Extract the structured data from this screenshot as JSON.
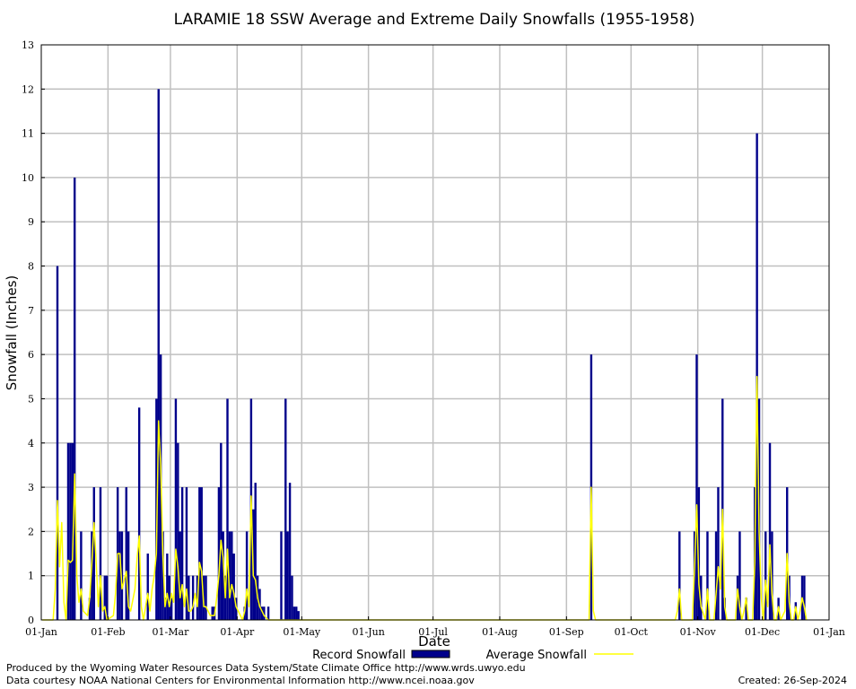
{
  "chart_data": {
    "type": "bar",
    "title": "LARAMIE 18 SSW Average and Extreme Daily Snowfalls (1955-1958)",
    "xlabel": "Date",
    "ylabel": "Snowfall (Inches)",
    "ylim": [
      0,
      13
    ],
    "yticks": [
      "0",
      "1",
      "2",
      "3",
      "4",
      "5",
      "6",
      "7",
      "8",
      "9",
      "10",
      "11",
      "12",
      "13"
    ],
    "xlim_days": [
      0,
      366
    ],
    "xticks": [
      {
        "label": "01-Jan",
        "day": 0
      },
      {
        "label": "01-Feb",
        "day": 31
      },
      {
        "label": "01-Mar",
        "day": 60
      },
      {
        "label": "01-Apr",
        "day": 91
      },
      {
        "label": "01-May",
        "day": 121
      },
      {
        "label": "01-Jun",
        "day": 152
      },
      {
        "label": "01-Jul",
        "day": 182
      },
      {
        "label": "01-Aug",
        "day": 213
      },
      {
        "label": "01-Sep",
        "day": 244
      },
      {
        "label": "01-Oct",
        "day": 274
      },
      {
        "label": "01-Nov",
        "day": 305
      },
      {
        "label": "01-Dec",
        "day": 335
      },
      {
        "label": "01-Jan",
        "day": 366
      }
    ],
    "grid": true,
    "legend_position": "bottom",
    "series": [
      {
        "name": "Record Snowfall",
        "style": "bar",
        "color": "#00008b",
        "points": [
          [
            7,
            8
          ],
          [
            12,
            4
          ],
          [
            13,
            4
          ],
          [
            14,
            4
          ],
          [
            15,
            10
          ],
          [
            16,
            0
          ],
          [
            18,
            2
          ],
          [
            22,
            0.5
          ],
          [
            23,
            2
          ],
          [
            24,
            3
          ],
          [
            27,
            3
          ],
          [
            29,
            1
          ],
          [
            30,
            1
          ],
          [
            35,
            3
          ],
          [
            36,
            2
          ],
          [
            37,
            2
          ],
          [
            39,
            3
          ],
          [
            40,
            2
          ],
          [
            45,
            4.8
          ],
          [
            49,
            1.5
          ],
          [
            53,
            5
          ],
          [
            54,
            12
          ],
          [
            55,
            6
          ],
          [
            56,
            2
          ],
          [
            57,
            0.5
          ],
          [
            58,
            1.5
          ],
          [
            59,
            1
          ],
          [
            60,
            0.5
          ],
          [
            62,
            5
          ],
          [
            63,
            4
          ],
          [
            64,
            2
          ],
          [
            65,
            3
          ],
          [
            67,
            3
          ],
          [
            68,
            1
          ],
          [
            70,
            1
          ],
          [
            72,
            1
          ],
          [
            73,
            3
          ],
          [
            74,
            3
          ],
          [
            75,
            1
          ],
          [
            76,
            1
          ],
          [
            79,
            0.3
          ],
          [
            80,
            0.3
          ],
          [
            82,
            3
          ],
          [
            83,
            4
          ],
          [
            84,
            2
          ],
          [
            85,
            1
          ],
          [
            86,
            5
          ],
          [
            87,
            2
          ],
          [
            88,
            2
          ],
          [
            89,
            1.5
          ],
          [
            90,
            0.5
          ],
          [
            94,
            0.3
          ],
          [
            95,
            2
          ],
          [
            97,
            5
          ],
          [
            98,
            2.5
          ],
          [
            99,
            3.1
          ],
          [
            100,
            1
          ],
          [
            101,
            0.7
          ],
          [
            102,
            0.3
          ],
          [
            103,
            0.3
          ],
          [
            105,
            0.3
          ],
          [
            111,
            2
          ],
          [
            113,
            5
          ],
          [
            114,
            2
          ],
          [
            115,
            3.1
          ],
          [
            116,
            1
          ],
          [
            117,
            0.3
          ],
          [
            118,
            0.3
          ],
          [
            119,
            0.2
          ],
          [
            255,
            6
          ],
          [
            296,
            2
          ],
          [
            303,
            2
          ],
          [
            304,
            6
          ],
          [
            305,
            3
          ],
          [
            306,
            1
          ],
          [
            309,
            2
          ],
          [
            313,
            2
          ],
          [
            314,
            3
          ],
          [
            316,
            5
          ],
          [
            317,
            0.5
          ],
          [
            323,
            1
          ],
          [
            324,
            2
          ],
          [
            327,
            0.5
          ],
          [
            331,
            3
          ],
          [
            332,
            11
          ],
          [
            333,
            5
          ],
          [
            336,
            2
          ],
          [
            338,
            4
          ],
          [
            339,
            2
          ],
          [
            342,
            0.5
          ],
          [
            346,
            3
          ],
          [
            347,
            1
          ],
          [
            350,
            0.4
          ],
          [
            353,
            1
          ],
          [
            354,
            1
          ]
        ]
      },
      {
        "name": "Average Snowfall",
        "style": "line",
        "color": "#ffff00",
        "points": [
          [
            0,
            0
          ],
          [
            5,
            0
          ],
          [
            6,
            0.7
          ],
          [
            7,
            2.7
          ],
          [
            8,
            1.2
          ],
          [
            9,
            2.2
          ],
          [
            10,
            0.4
          ],
          [
            11,
            0
          ],
          [
            12,
            1.35
          ],
          [
            13,
            1.3
          ],
          [
            14,
            1.35
          ],
          [
            15,
            3.3
          ],
          [
            16,
            1
          ],
          [
            17,
            0.4
          ],
          [
            18,
            0.7
          ],
          [
            19,
            0.2
          ],
          [
            21,
            0.1
          ],
          [
            22,
            0.5
          ],
          [
            23,
            1.3
          ],
          [
            24,
            2.2
          ],
          [
            25,
            1.3
          ],
          [
            26,
            0.3
          ],
          [
            27,
            1
          ],
          [
            28,
            0.2
          ],
          [
            29,
            0.3
          ],
          [
            30,
            0
          ],
          [
            33,
            0.1
          ],
          [
            34,
            0.6
          ],
          [
            35,
            1.5
          ],
          [
            36,
            1.5
          ],
          [
            37,
            0.7
          ],
          [
            38,
            0.9
          ],
          [
            39,
            1.1
          ],
          [
            40,
            0.3
          ],
          [
            41,
            0.2
          ],
          [
            43,
            0.7
          ],
          [
            44,
            1.4
          ],
          [
            45,
            1.9
          ],
          [
            46,
            0.3
          ],
          [
            47,
            0
          ],
          [
            49,
            0.6
          ],
          [
            50,
            0.2
          ],
          [
            51,
            0.7
          ],
          [
            52,
            1
          ],
          [
            53,
            1.5
          ],
          [
            54,
            4.5
          ],
          [
            55,
            3.5
          ],
          [
            56,
            1.5
          ],
          [
            57,
            0.3
          ],
          [
            58,
            0.6
          ],
          [
            59,
            0.3
          ],
          [
            60,
            0.6
          ],
          [
            61,
            0.4
          ],
          [
            62,
            1.6
          ],
          [
            63,
            1.2
          ],
          [
            64,
            0.5
          ],
          [
            65,
            0.8
          ],
          [
            66,
            0.3
          ],
          [
            67,
            0.7
          ],
          [
            68,
            0.2
          ],
          [
            69,
            0.2
          ],
          [
            70,
            0.3
          ],
          [
            71,
            0.6
          ],
          [
            72,
            0.3
          ],
          [
            73,
            1.3
          ],
          [
            74,
            1.1
          ],
          [
            75,
            0.3
          ],
          [
            76,
            0.3
          ],
          [
            78,
            0.1
          ],
          [
            80,
            0.1
          ],
          [
            81,
            0.5
          ],
          [
            82,
            1
          ],
          [
            83,
            1.8
          ],
          [
            84,
            1.4
          ],
          [
            85,
            0.5
          ],
          [
            86,
            1.6
          ],
          [
            87,
            0.5
          ],
          [
            88,
            0.8
          ],
          [
            89,
            0.6
          ],
          [
            90,
            0.3
          ],
          [
            93,
            0
          ],
          [
            94,
            0.2
          ],
          [
            95,
            0.7
          ],
          [
            96,
            0.3
          ],
          [
            97,
            2.8
          ],
          [
            98,
            1
          ],
          [
            99,
            0.9
          ],
          [
            100,
            0.5
          ],
          [
            101,
            0.3
          ],
          [
            102,
            0.2
          ],
          [
            103,
            0.1
          ],
          [
            105,
            0
          ],
          [
            240,
            0
          ],
          [
            254,
            0
          ],
          [
            255,
            3
          ],
          [
            256,
            0.2
          ],
          [
            257,
            0
          ],
          [
            294,
            0
          ],
          [
            295,
            0.2
          ],
          [
            296,
            0.7
          ],
          [
            297,
            0
          ],
          [
            302,
            0
          ],
          [
            303,
            1.2
          ],
          [
            304,
            2.6
          ],
          [
            305,
            0.8
          ],
          [
            306,
            0.3
          ],
          [
            308,
            0
          ],
          [
            309,
            0.7
          ],
          [
            310,
            0
          ],
          [
            312,
            0
          ],
          [
            313,
            0.6
          ],
          [
            314,
            1.2
          ],
          [
            315,
            0.7
          ],
          [
            316,
            2.5
          ],
          [
            317,
            0.3
          ],
          [
            318,
            0
          ],
          [
            322,
            0
          ],
          [
            323,
            0.7
          ],
          [
            324,
            0.3
          ],
          [
            325,
            0
          ],
          [
            326,
            0.2
          ],
          [
            327,
            0.5
          ],
          [
            328,
            0
          ],
          [
            330,
            0
          ],
          [
            331,
            1.3
          ],
          [
            332,
            5.5
          ],
          [
            333,
            2
          ],
          [
            334,
            0.5
          ],
          [
            335,
            0
          ],
          [
            336,
            0.9
          ],
          [
            337,
            0.3
          ],
          [
            338,
            1.7
          ],
          [
            339,
            0.6
          ],
          [
            340,
            0
          ],
          [
            341,
            0
          ],
          [
            342,
            0.3
          ],
          [
            343,
            0
          ],
          [
            345,
            0.2
          ],
          [
            346,
            1.5
          ],
          [
            347,
            0.4
          ],
          [
            348,
            0
          ],
          [
            349,
            0
          ],
          [
            350,
            0.3
          ],
          [
            351,
            0
          ],
          [
            352,
            0.2
          ],
          [
            353,
            0.5
          ],
          [
            354,
            0.3
          ],
          [
            355,
            0
          ]
        ]
      }
    ]
  },
  "footer": {
    "produced_by": "Produced by the Wyoming Water Resources Data System/State Climate Office http://www.wrds.uwyo.edu",
    "courtesy": "Data courtesy NOAA National Centers for Environmental Information http://www.ncei.noaa.gov",
    "created": "Created:  26-Sep-2024"
  }
}
